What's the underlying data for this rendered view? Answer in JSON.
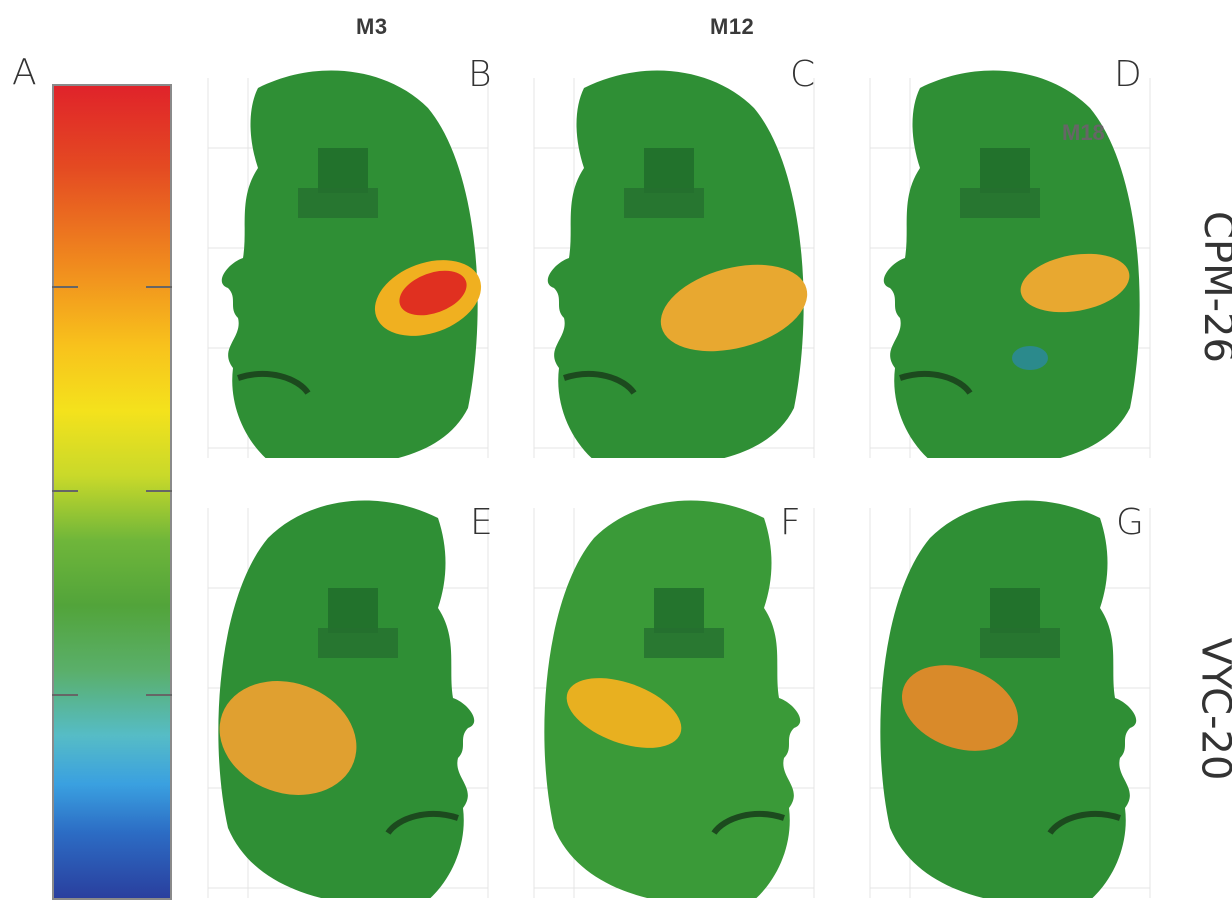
{
  "headers": {
    "col1": "M3",
    "col2": "M12",
    "col3": "M18"
  },
  "colorbar": {
    "label": "A"
  },
  "panels": [
    {
      "letter": "B",
      "row": "CPM-26",
      "col": "M3"
    },
    {
      "letter": "C",
      "row": "CPM-26",
      "col": "M12"
    },
    {
      "letter": "D",
      "row": "CPM-26",
      "col": "M18"
    },
    {
      "letter": "E",
      "row": "VYC-20",
      "col": "M3"
    },
    {
      "letter": "F",
      "row": "VYC-20",
      "col": "M12"
    },
    {
      "letter": "G",
      "row": "VYC-20",
      "col": "M18"
    }
  ],
  "rows": {
    "top": "CPM-26",
    "bottom": "VYC-20"
  }
}
